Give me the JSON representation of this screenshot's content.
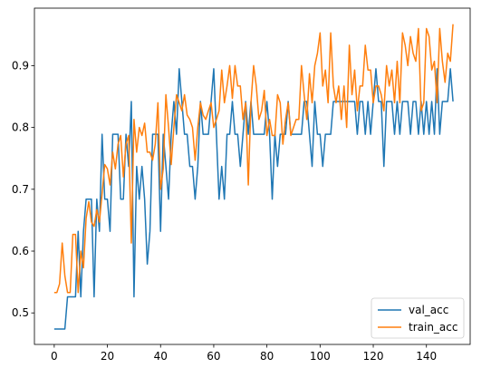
{
  "chart_data": {
    "type": "line",
    "title": "",
    "xlabel": "",
    "ylabel": "",
    "xlim": [
      -7.45,
      156.45
    ],
    "ylim": [
      0.449,
      0.993
    ],
    "xticks": [
      0,
      20,
      40,
      60,
      80,
      100,
      120,
      140
    ],
    "yticks": [
      0.5,
      0.6,
      0.7,
      0.8,
      0.9
    ],
    "xtick_labels": [
      "0",
      "20",
      "40",
      "60",
      "80",
      "100",
      "120",
      "140"
    ],
    "ytick_labels": [
      "0.5",
      "0.6",
      "0.7",
      "0.8",
      "0.9"
    ],
    "grid": false,
    "legend_position": "lower-right",
    "series": [
      {
        "name": "val_acc",
        "color": "#1f77b4",
        "values": [
          0.474,
          0.474,
          0.474,
          0.474,
          0.474,
          0.526,
          0.526,
          0.526,
          0.526,
          0.632,
          0.526,
          0.632,
          0.684,
          0.684,
          0.684,
          0.526,
          0.684,
          0.632,
          0.789,
          0.684,
          0.684,
          0.632,
          0.789,
          0.789,
          0.789,
          0.684,
          0.684,
          0.789,
          0.737,
          0.842,
          0.526,
          0.737,
          0.684,
          0.737,
          0.684,
          0.579,
          0.632,
          0.789,
          0.789,
          0.789,
          0.632,
          0.789,
          0.737,
          0.684,
          0.789,
          0.842,
          0.789,
          0.895,
          0.842,
          0.789,
          0.789,
          0.737,
          0.737,
          0.684,
          0.737,
          0.842,
          0.789,
          0.789,
          0.789,
          0.842,
          0.895,
          0.789,
          0.684,
          0.737,
          0.684,
          0.789,
          0.789,
          0.842,
          0.789,
          0.789,
          0.737,
          0.789,
          0.842,
          0.789,
          0.842,
          0.789,
          0.789,
          0.789,
          0.789,
          0.789,
          0.842,
          0.789,
          0.684,
          0.789,
          0.737,
          0.789,
          0.789,
          0.789,
          0.842,
          0.789,
          0.789,
          0.789,
          0.789,
          0.789,
          0.842,
          0.842,
          0.789,
          0.737,
          0.842,
          0.789,
          0.789,
          0.737,
          0.789,
          0.789,
          0.789,
          0.842,
          0.842,
          0.842,
          0.842,
          0.842,
          0.842,
          0.842,
          0.842,
          0.842,
          0.789,
          0.842,
          0.842,
          0.789,
          0.842,
          0.789,
          0.842,
          0.895,
          0.842,
          0.842,
          0.737,
          0.842,
          0.842,
          0.842,
          0.789,
          0.842,
          0.789,
          0.842,
          0.842,
          0.842,
          0.789,
          0.842,
          0.842,
          0.789,
          0.842,
          0.789,
          0.842,
          0.789,
          0.842,
          0.789,
          0.895,
          0.789,
          0.842,
          0.842,
          0.842,
          0.895,
          0.842
        ]
      },
      {
        "name": "train_acc",
        "color": "#ff7f0e",
        "values": [
          0.533,
          0.533,
          0.547,
          0.613,
          0.56,
          0.533,
          0.533,
          0.627,
          0.627,
          0.533,
          0.6,
          0.573,
          0.653,
          0.68,
          0.647,
          0.64,
          0.667,
          0.647,
          0.693,
          0.74,
          0.733,
          0.707,
          0.76,
          0.733,
          0.773,
          0.787,
          0.72,
          0.773,
          0.787,
          0.613,
          0.813,
          0.76,
          0.8,
          0.787,
          0.807,
          0.76,
          0.76,
          0.747,
          0.773,
          0.84,
          0.7,
          0.733,
          0.853,
          0.8,
          0.74,
          0.8,
          0.853,
          0.84,
          0.827,
          0.853,
          0.82,
          0.813,
          0.8,
          0.747,
          0.8,
          0.84,
          0.82,
          0.813,
          0.827,
          0.84,
          0.8,
          0.813,
          0.827,
          0.893,
          0.84,
          0.867,
          0.9,
          0.847,
          0.9,
          0.867,
          0.867,
          0.813,
          0.84,
          0.707,
          0.84,
          0.9,
          0.867,
          0.813,
          0.827,
          0.86,
          0.787,
          0.813,
          0.787,
          0.787,
          0.853,
          0.84,
          0.773,
          0.813,
          0.84,
          0.787,
          0.8,
          0.813,
          0.813,
          0.9,
          0.853,
          0.813,
          0.887,
          0.84,
          0.9,
          0.92,
          0.953,
          0.867,
          0.893,
          0.84,
          0.953,
          0.867,
          0.84,
          0.867,
          0.813,
          0.867,
          0.8,
          0.933,
          0.853,
          0.893,
          0.827,
          0.867,
          0.867,
          0.933,
          0.893,
          0.893,
          0.84,
          0.867,
          0.867,
          0.853,
          0.827,
          0.9,
          0.867,
          0.893,
          0.84,
          0.907,
          0.84,
          0.953,
          0.933,
          0.9,
          0.947,
          0.92,
          0.907,
          0.96,
          0.827,
          0.84,
          0.96,
          0.947,
          0.893,
          0.907,
          0.84,
          0.96,
          0.907,
          0.873,
          0.92,
          0.907,
          0.967
        ]
      }
    ]
  }
}
